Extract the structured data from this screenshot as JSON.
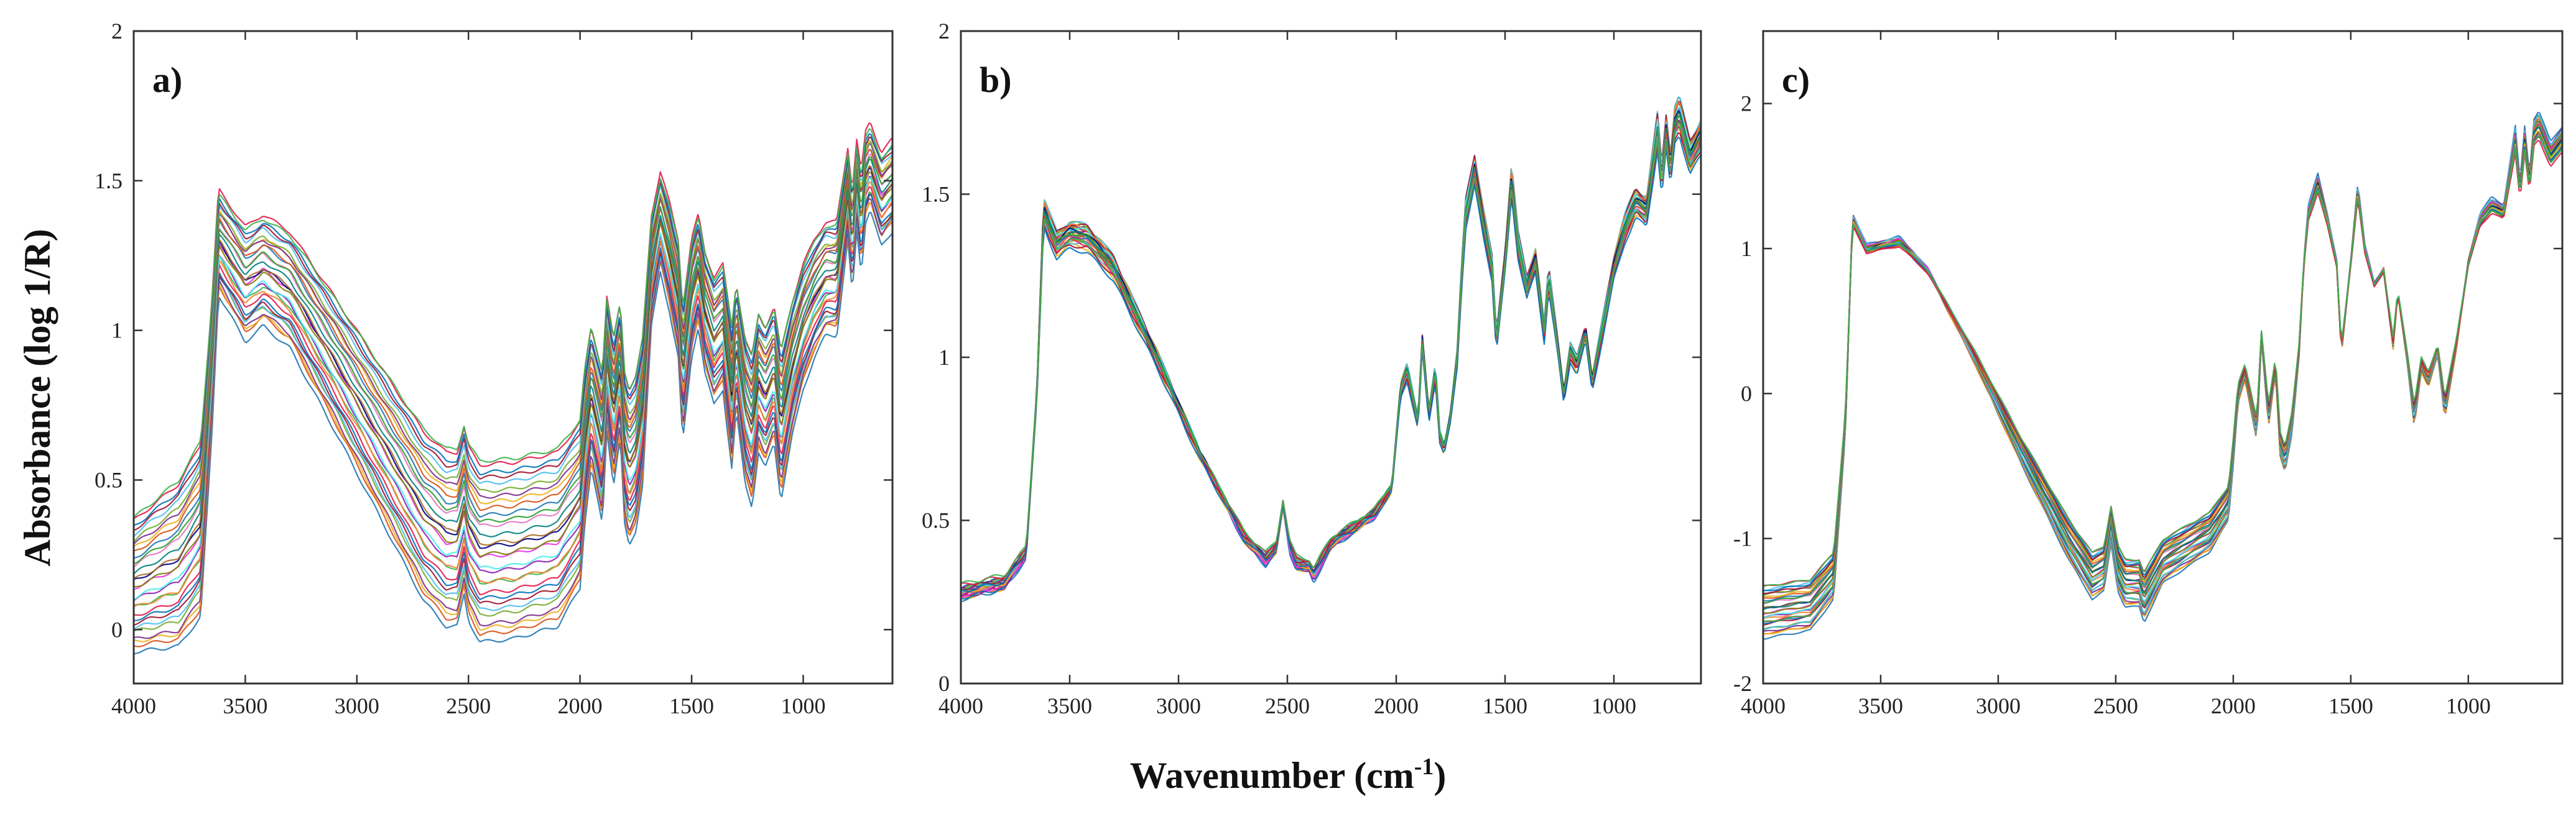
{
  "figure": {
    "ylabel": "Absorbance (log 1/R)",
    "xlabel_main": "Wavenumber (cm",
    "xlabel_sup": "-1",
    "xlabel_close": ")"
  },
  "chart_data": [
    {
      "type": "line",
      "panel": "a)",
      "title": "",
      "xlabel": "Wavenumber (cm-1)",
      "ylabel": "Absorbance (log 1/R)",
      "xlim": [
        4000,
        600
      ],
      "x_reversed": true,
      "ylim": [
        -0.18,
        2.0
      ],
      "xticks": [
        4000,
        3500,
        3000,
        2500,
        2000,
        1500,
        1000
      ],
      "xtick_labels": [
        "4000",
        "3500",
        "3000",
        "2500",
        "2000",
        "1500",
        "1000"
      ],
      "yticks": [
        0,
        0.5,
        1,
        1.5,
        2
      ],
      "ytick_labels": [
        "0",
        "0.5",
        "1",
        "1.5",
        "2"
      ],
      "series_count": 30,
      "reference_spectrum": {
        "x": [
          4000,
          3800,
          3700,
          3650,
          3620,
          3500,
          3420,
          3300,
          3100,
          2900,
          2700,
          2600,
          2550,
          2520,
          2500,
          2450,
          2300,
          2100,
          2000,
          1980,
          1950,
          1900,
          1880,
          1850,
          1820,
          1800,
          1780,
          1750,
          1720,
          1700,
          1680,
          1640,
          1600,
          1560,
          1540,
          1500,
          1470,
          1440,
          1400,
          1360,
          1320,
          1300,
          1260,
          1230,
          1200,
          1170,
          1130,
          1100,
          1050,
          1000,
          950,
          900,
          850,
          800,
          780,
          760,
          740,
          720,
          700,
          650,
          600
        ],
        "y": [
          0.4,
          0.43,
          0.53,
          1.1,
          1.55,
          1.4,
          1.45,
          1.38,
          1.12,
          0.85,
          0.58,
          0.5,
          0.5,
          0.6,
          0.52,
          0.45,
          0.46,
          0.5,
          0.62,
          0.82,
          1.0,
          0.82,
          1.12,
          0.95,
          1.1,
          0.82,
          0.75,
          0.8,
          0.95,
          1.2,
          1.45,
          1.62,
          1.5,
          1.35,
          1.08,
          1.35,
          1.45,
          1.3,
          1.2,
          1.25,
          1.0,
          1.18,
          0.95,
          0.88,
          1.05,
          1.0,
          1.08,
          0.9,
          1.1,
          1.25,
          1.35,
          1.42,
          1.42,
          1.72,
          1.55,
          1.75,
          1.62,
          1.78,
          1.82,
          1.7,
          1.75
        ]
      },
      "variation": {
        "offset_range": [
          -0.52,
          0.2
        ],
        "scale_range": [
          0.82,
          1.06
        ],
        "low_end_tail": [
          0.02,
          -0.15
        ]
      }
    },
    {
      "type": "line",
      "panel": "b)",
      "title": "",
      "xlabel": "Wavenumber (cm-1)",
      "ylabel": "Absorbance (log 1/R)",
      "xlim": [
        4000,
        600
      ],
      "x_reversed": true,
      "ylim": [
        0,
        2.0
      ],
      "xticks": [
        4000,
        3500,
        3000,
        2500,
        2000,
        1500,
        1000
      ],
      "xtick_labels": [
        "4000",
        "3500",
        "3000",
        "2500",
        "2000",
        "1500",
        "1000"
      ],
      "yticks": [
        0,
        0.5,
        1,
        1.5,
        2
      ],
      "ytick_labels": [
        "0",
        "0.5",
        "1",
        "1.5",
        "2"
      ],
      "series_count": 30,
      "reference_spectrum": {
        "x": [
          4000,
          3800,
          3700,
          3650,
          3620,
          3560,
          3500,
          3420,
          3300,
          3100,
          2900,
          2700,
          2600,
          2550,
          2520,
          2490,
          2460,
          2400,
          2380,
          2300,
          2100,
          2020,
          2000,
          1980,
          1950,
          1900,
          1880,
          1850,
          1820,
          1800,
          1780,
          1750,
          1720,
          1700,
          1680,
          1640,
          1600,
          1560,
          1540,
          1500,
          1470,
          1440,
          1400,
          1360,
          1320,
          1300,
          1260,
          1230,
          1200,
          1170,
          1130,
          1100,
          1050,
          1000,
          950,
          900,
          850,
          800,
          780,
          760,
          740,
          720,
          700,
          650,
          600
        ],
        "y": [
          0.28,
          0.31,
          0.4,
          0.9,
          1.45,
          1.35,
          1.38,
          1.37,
          1.28,
          1.0,
          0.7,
          0.45,
          0.38,
          0.42,
          0.55,
          0.42,
          0.37,
          0.36,
          0.33,
          0.43,
          0.52,
          0.6,
          0.75,
          0.9,
          0.96,
          0.8,
          1.05,
          0.82,
          0.96,
          0.76,
          0.72,
          0.82,
          1.0,
          1.25,
          1.45,
          1.58,
          1.42,
          1.28,
          1.05,
          1.3,
          1.55,
          1.35,
          1.22,
          1.3,
          1.08,
          1.25,
          1.05,
          0.88,
          1.02,
          0.98,
          1.08,
          0.92,
          1.1,
          1.28,
          1.4,
          1.48,
          1.45,
          1.7,
          1.55,
          1.7,
          1.58,
          1.72,
          1.75,
          1.62,
          1.68
        ]
      },
      "variation": {
        "offset_range": [
          -0.03,
          0.03
        ],
        "scale_range": [
          0.95,
          1.05
        ],
        "low_end_tail": [
          0,
          0
        ]
      }
    },
    {
      "type": "line",
      "panel": "c)",
      "title": "",
      "xlabel": "Wavenumber (cm-1)",
      "ylabel": "Absorbance (log 1/R)",
      "xlim": [
        4000,
        600
      ],
      "x_reversed": true,
      "ylim": [
        -2.0,
        2.5
      ],
      "xticks": [
        4000,
        3500,
        3000,
        2500,
        2000,
        1500,
        1000
      ],
      "xtick_labels": [
        "4000",
        "3500",
        "3000",
        "2500",
        "2000",
        "1500",
        "1000"
      ],
      "yticks": [
        -2,
        -1,
        0,
        1,
        2
      ],
      "ytick_labels": [
        "-2",
        "-1",
        "0",
        "1",
        "2"
      ],
      "series_count": 30,
      "reference_spectrum": {
        "x": [
          4000,
          3800,
          3700,
          3650,
          3620,
          3560,
          3500,
          3420,
          3300,
          3100,
          2900,
          2700,
          2600,
          2550,
          2520,
          2490,
          2460,
          2400,
          2380,
          2300,
          2100,
          2020,
          2000,
          1980,
          1950,
          1900,
          1880,
          1850,
          1820,
          1800,
          1780,
          1750,
          1720,
          1700,
          1680,
          1640,
          1600,
          1560,
          1540,
          1500,
          1470,
          1440,
          1400,
          1360,
          1320,
          1300,
          1260,
          1230,
          1200,
          1170,
          1130,
          1100,
          1050,
          1000,
          950,
          900,
          850,
          800,
          780,
          760,
          740,
          720,
          700,
          650,
          600
        ],
        "y": [
          -1.5,
          -1.45,
          -1.25,
          -0.2,
          1.2,
          1.0,
          1.02,
          1.05,
          0.85,
          0.25,
          -0.4,
          -1.0,
          -1.25,
          -1.2,
          -0.9,
          -1.2,
          -1.3,
          -1.3,
          -1.4,
          -1.15,
          -0.95,
          -0.75,
          -0.4,
          0.0,
          0.15,
          -0.25,
          0.4,
          -0.15,
          0.2,
          -0.35,
          -0.45,
          -0.2,
          0.3,
          0.9,
          1.25,
          1.45,
          1.2,
          0.9,
          0.3,
          0.9,
          1.4,
          1.0,
          0.75,
          0.85,
          0.35,
          0.7,
          0.25,
          -0.15,
          0.2,
          0.1,
          0.3,
          -0.1,
          0.35,
          0.9,
          1.2,
          1.3,
          1.25,
          1.75,
          1.4,
          1.75,
          1.45,
          1.8,
          1.85,
          1.65,
          1.75
        ]
      },
      "variation": {
        "offset_range": [
          -0.06,
          0.06
        ],
        "scale_range": [
          0.92,
          1.08
        ],
        "low_end_tail": [
          0,
          0
        ]
      }
    }
  ],
  "colors": {
    "palette": [
      "#1f77b4",
      "#d95319",
      "#edb120",
      "#7e2f8e",
      "#77ac30",
      "#4dbeee",
      "#a2142f",
      "#0072bd",
      "#e6194b",
      "#3cb44b",
      "#f58231",
      "#911eb4",
      "#46f0f0",
      "#f032e6",
      "#808000",
      "#000080",
      "#aa6e28",
      "#008080",
      "#e377c2",
      "#2ca02c"
    ],
    "frame": "#333333"
  }
}
